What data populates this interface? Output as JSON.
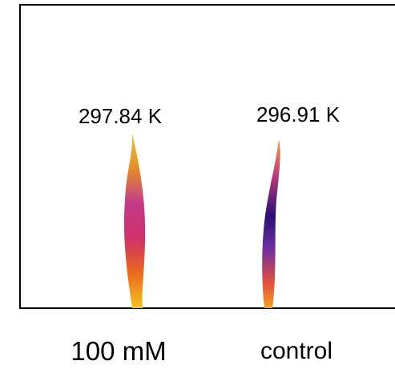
{
  "panels": [
    {
      "temperature": "297.84 K",
      "label": "100 mM"
    },
    {
      "temperature": "296.91 K",
      "label": "control"
    }
  ]
}
